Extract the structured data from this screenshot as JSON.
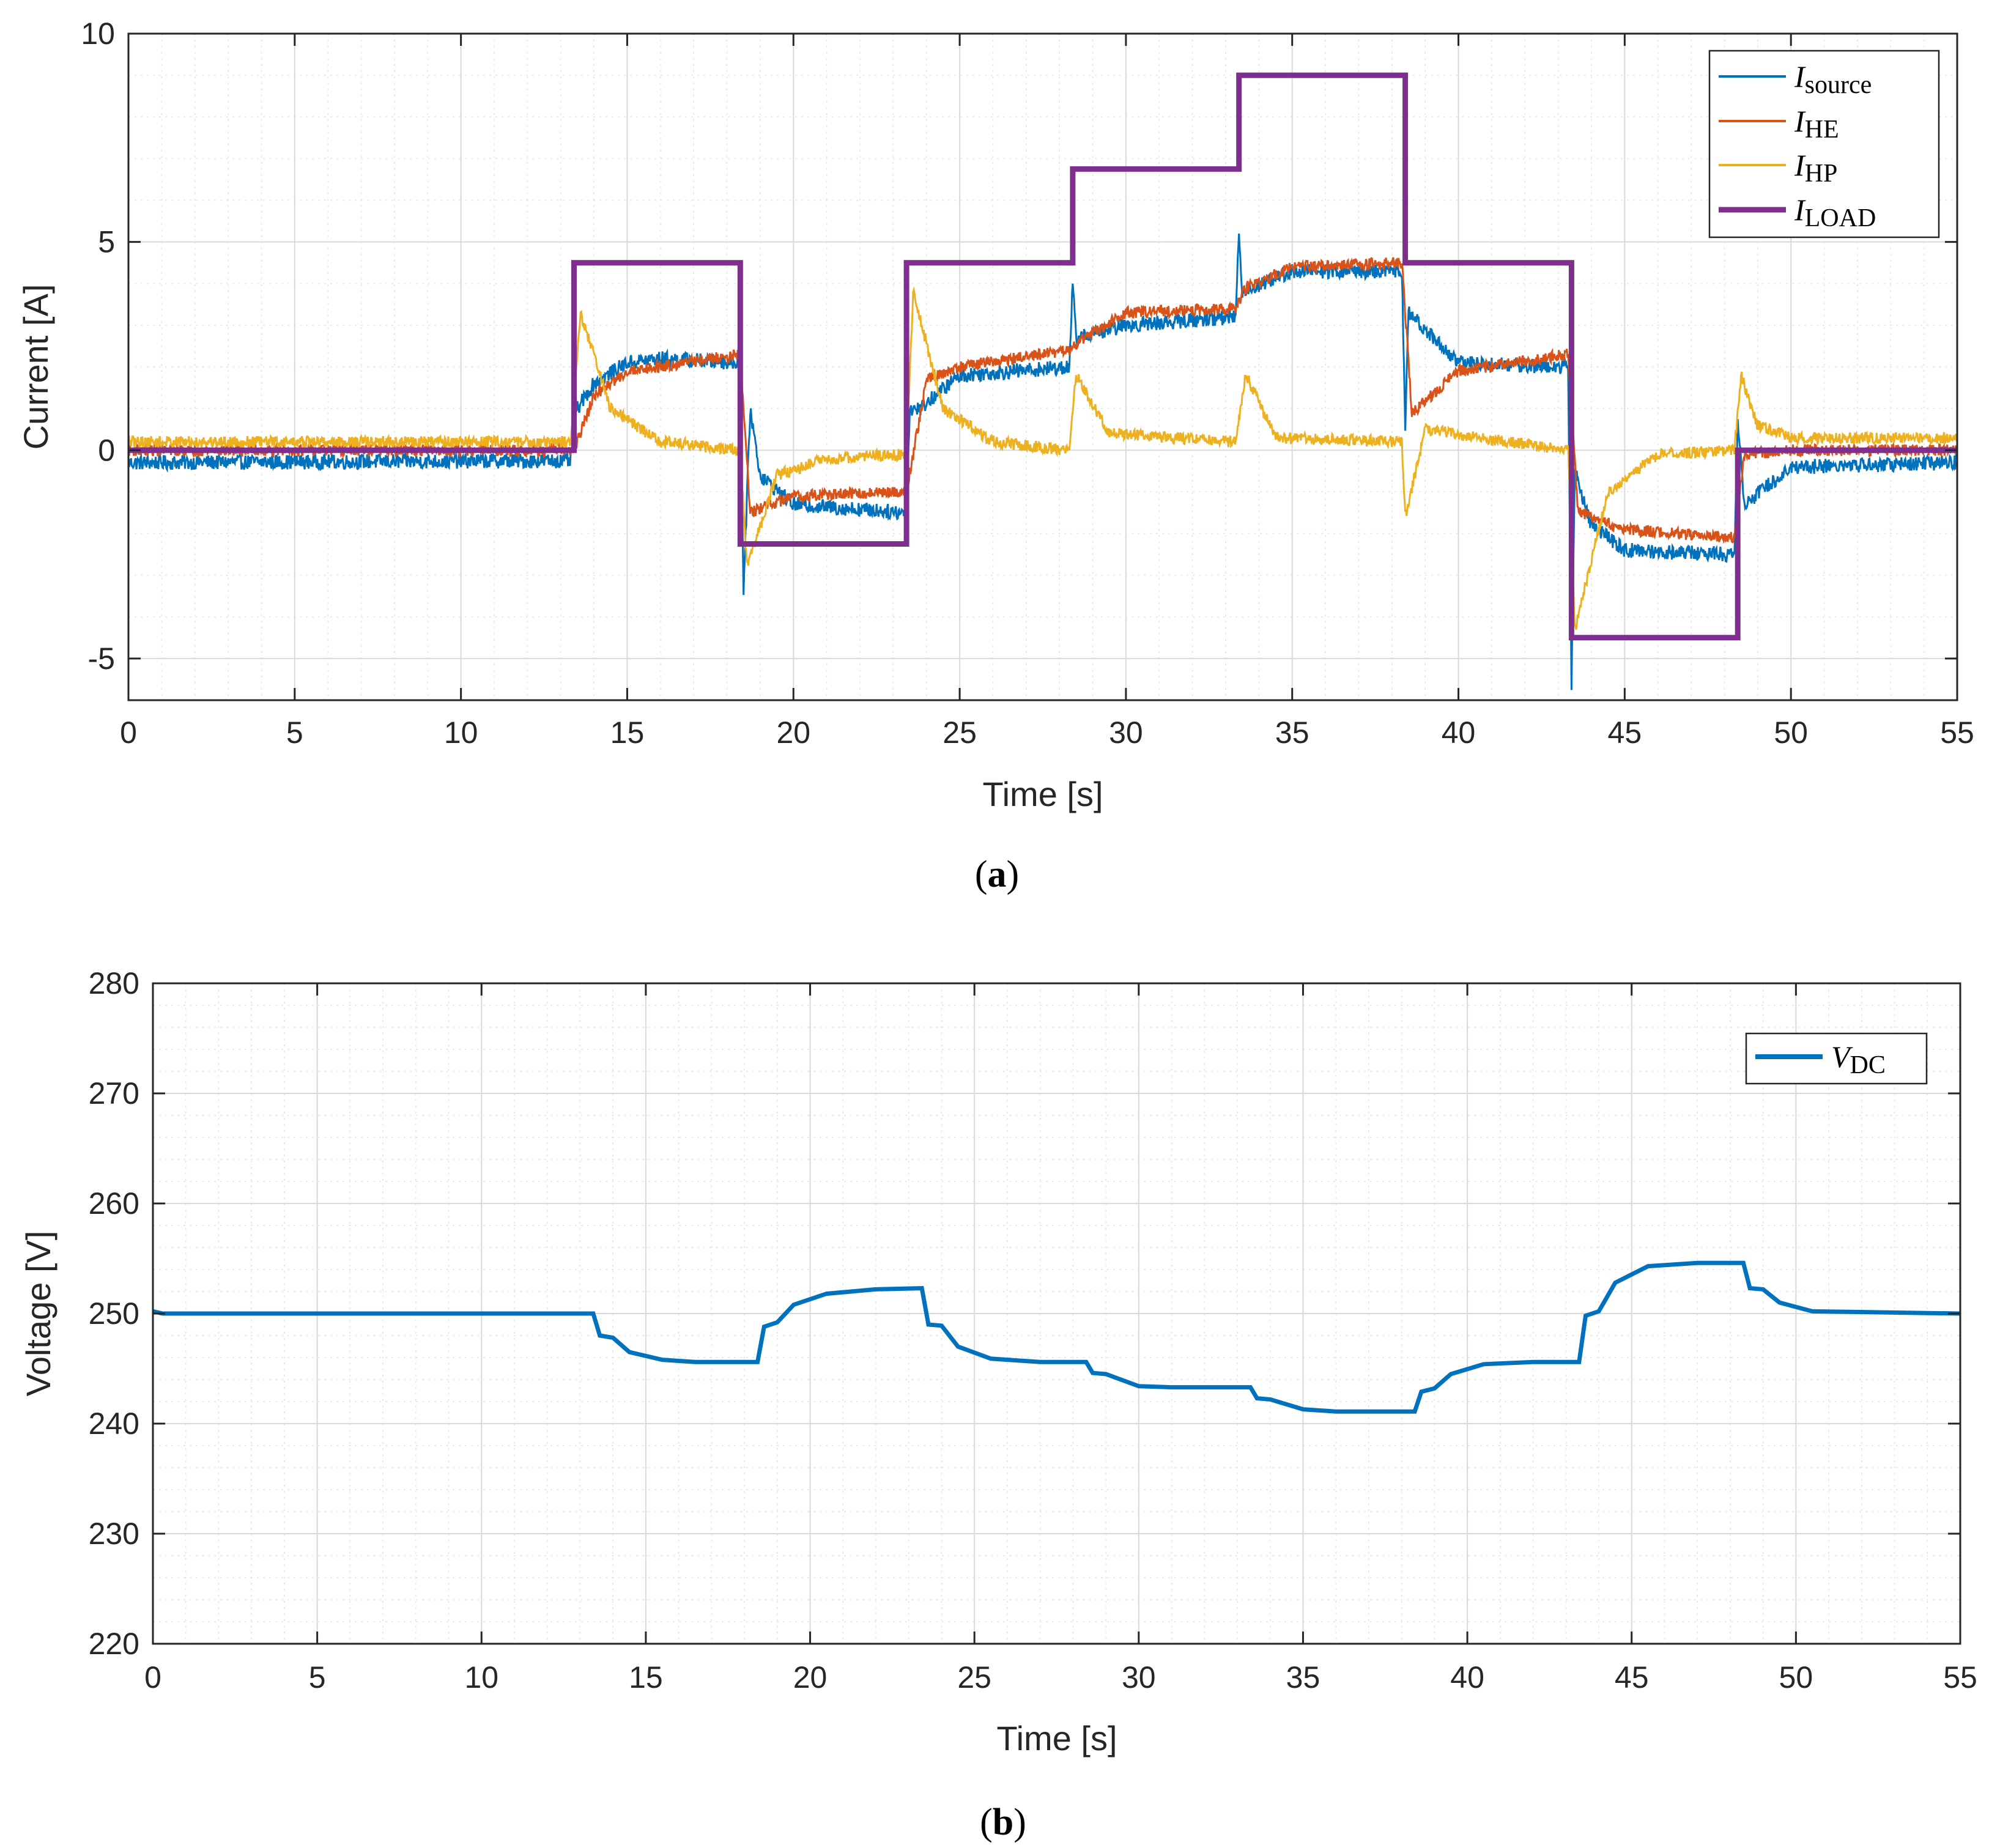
{
  "chart_data": [
    {
      "id": "a",
      "type": "line",
      "panel_label": "a",
      "xlabel": "Time [s]",
      "ylabel": "Current [A]",
      "xlim": [
        0,
        55
      ],
      "ylim": [
        -6,
        10
      ],
      "xticks": [
        0,
        5,
        10,
        15,
        20,
        25,
        30,
        35,
        40,
        45,
        50,
        55
      ],
      "yticks": [
        -5,
        0,
        5,
        10
      ],
      "ytick_labels": [
        "-5",
        "0",
        "5",
        "10"
      ],
      "grid": true,
      "legend_position": "top-right",
      "series": [
        {
          "name": "I_source",
          "label_main": "I",
          "label_sub": "source",
          "color": "#0072BD",
          "noise": 0.18,
          "width": 3,
          "points": [
            [
              0,
              -0.3
            ],
            [
              13.3,
              -0.25
            ],
            [
              13.5,
              1.0
            ],
            [
              14,
              1.6
            ],
            [
              15,
              2.1
            ],
            [
              16,
              2.2
            ],
            [
              18.4,
              2.1
            ],
            [
              18.5,
              -3.4
            ],
            [
              18.7,
              1.0
            ],
            [
              19,
              -0.6
            ],
            [
              20,
              -1.3
            ],
            [
              23.4,
              -1.5
            ],
            [
              23.5,
              1.0
            ],
            [
              23.8,
              1.0
            ],
            [
              25,
              1.8
            ],
            [
              28.3,
              2.0
            ],
            [
              28.4,
              4.0
            ],
            [
              28.5,
              2.7
            ],
            [
              30,
              3.0
            ],
            [
              33.3,
              3.2
            ],
            [
              33.4,
              5.3
            ],
            [
              33.5,
              3.8
            ],
            [
              35,
              4.3
            ],
            [
              38.3,
              4.3
            ],
            [
              38.4,
              0.6
            ],
            [
              38.5,
              3.3
            ],
            [
              40,
              2.1
            ],
            [
              43.3,
              2.0
            ],
            [
              43.4,
              -5.6
            ],
            [
              43.5,
              -0.5
            ],
            [
              44,
              -1.8
            ],
            [
              45,
              -2.4
            ],
            [
              48.3,
              -2.5
            ],
            [
              48.4,
              0.8
            ],
            [
              48.6,
              -1.3
            ],
            [
              50,
              -0.4
            ],
            [
              55,
              -0.3
            ]
          ]
        },
        {
          "name": "I_HE",
          "label_main": "I",
          "label_sub": "HE",
          "color": "#D95319",
          "noise": 0.14,
          "width": 3,
          "points": [
            [
              0,
              0.0
            ],
            [
              13.4,
              0.0
            ],
            [
              14,
              1.3
            ],
            [
              15,
              1.9
            ],
            [
              18.4,
              2.3
            ],
            [
              18.7,
              -1.5
            ],
            [
              20,
              -1.1
            ],
            [
              23.4,
              -1.0
            ],
            [
              24,
              1.7
            ],
            [
              25,
              2.0
            ],
            [
              28.3,
              2.4
            ],
            [
              28.6,
              2.6
            ],
            [
              30,
              3.3
            ],
            [
              33.3,
              3.4
            ],
            [
              33.6,
              3.9
            ],
            [
              35,
              4.4
            ],
            [
              38.3,
              4.5
            ],
            [
              38.6,
              0.9
            ],
            [
              40,
              1.9
            ],
            [
              43.3,
              2.3
            ],
            [
              43.6,
              -1.5
            ],
            [
              45,
              -1.9
            ],
            [
              48.3,
              -2.1
            ],
            [
              48.6,
              -0.1
            ],
            [
              50,
              0.0
            ],
            [
              55,
              0.0
            ]
          ]
        },
        {
          "name": "I_HP",
          "label_main": "I",
          "label_sub": "HP",
          "color": "#EDB120",
          "noise": 0.14,
          "width": 3,
          "points": [
            [
              0,
              0.2
            ],
            [
              13.3,
              0.2
            ],
            [
              13.6,
              3.3
            ],
            [
              14.5,
              1.0
            ],
            [
              16,
              0.2
            ],
            [
              18.4,
              0.0
            ],
            [
              18.6,
              -2.8
            ],
            [
              19.5,
              -0.6
            ],
            [
              21,
              -0.2
            ],
            [
              23.4,
              -0.1
            ],
            [
              23.6,
              3.8
            ],
            [
              24.5,
              1.0
            ],
            [
              26,
              0.2
            ],
            [
              28.3,
              0.0
            ],
            [
              28.5,
              1.8
            ],
            [
              29.5,
              0.4
            ],
            [
              33.3,
              0.2
            ],
            [
              33.6,
              1.8
            ],
            [
              34.5,
              0.3
            ],
            [
              38.3,
              0.2
            ],
            [
              38.4,
              -1.6
            ],
            [
              39,
              0.5
            ],
            [
              43.3,
              0.0
            ],
            [
              43.5,
              -4.3
            ],
            [
              44.5,
              -1.0
            ],
            [
              46,
              -0.1
            ],
            [
              48.3,
              0.0
            ],
            [
              48.5,
              1.8
            ],
            [
              49,
              0.6
            ],
            [
              50,
              0.3
            ],
            [
              55,
              0.3
            ]
          ]
        },
        {
          "name": "I_LOAD",
          "label_main": "I",
          "label_sub": "LOAD",
          "color": "#7E2F8E",
          "noise": 0,
          "width": 9,
          "points": [
            [
              0,
              0
            ],
            [
              13.4,
              0
            ],
            [
              13.4,
              4.5
            ],
            [
              18.4,
              4.5
            ],
            [
              18.4,
              -2.25
            ],
            [
              23.4,
              -2.25
            ],
            [
              23.4,
              4.5
            ],
            [
              28.4,
              4.5
            ],
            [
              28.4,
              6.75
            ],
            [
              33.4,
              6.75
            ],
            [
              33.4,
              9.0
            ],
            [
              38.4,
              9.0
            ],
            [
              38.4,
              4.5
            ],
            [
              43.4,
              4.5
            ],
            [
              43.4,
              -4.5
            ],
            [
              48.4,
              -4.5
            ],
            [
              48.4,
              0
            ],
            [
              55,
              0
            ]
          ]
        }
      ]
    },
    {
      "id": "b",
      "type": "line",
      "panel_label": "b",
      "xlabel": "Time [s]",
      "ylabel": "Voltage [V]",
      "xlim": [
        0,
        55
      ],
      "ylim": [
        220,
        280
      ],
      "xticks": [
        0,
        5,
        10,
        15,
        20,
        25,
        30,
        35,
        40,
        45,
        50,
        55
      ],
      "yticks": [
        220,
        230,
        240,
        250,
        260,
        270,
        280
      ],
      "ytick_labels": [
        "220",
        "230",
        "240",
        "250",
        "260",
        "270",
        "280"
      ],
      "grid": true,
      "legend_position": "top-right",
      "series": [
        {
          "name": "V_DC",
          "label_main": "V",
          "label_sub": "DC",
          "color": "#0072BD",
          "noise": 0,
          "width": 7,
          "points": [
            [
              0,
              250.2
            ],
            [
              0.3,
              250.0
            ],
            [
              13.4,
              250.0
            ],
            [
              13.6,
              248.0
            ],
            [
              14,
              247.8
            ],
            [
              14.5,
              246.5
            ],
            [
              15.5,
              245.8
            ],
            [
              16.5,
              245.6
            ],
            [
              18.4,
              245.6
            ],
            [
              18.6,
              248.8
            ],
            [
              19,
              249.2
            ],
            [
              19.5,
              250.8
            ],
            [
              20.5,
              251.8
            ],
            [
              22,
              252.2
            ],
            [
              23.4,
              252.3
            ],
            [
              23.6,
              249.0
            ],
            [
              24,
              248.9
            ],
            [
              24.5,
              247.0
            ],
            [
              25.5,
              245.9
            ],
            [
              27,
              245.6
            ],
            [
              28.4,
              245.6
            ],
            [
              28.6,
              244.6
            ],
            [
              29,
              244.5
            ],
            [
              30,
              243.4
            ],
            [
              31,
              243.3
            ],
            [
              33.4,
              243.3
            ],
            [
              33.6,
              242.3
            ],
            [
              34,
              242.2
            ],
            [
              35,
              241.3
            ],
            [
              36,
              241.1
            ],
            [
              38.4,
              241.1
            ],
            [
              38.6,
              242.9
            ],
            [
              39,
              243.2
            ],
            [
              39.5,
              244.5
            ],
            [
              40.5,
              245.4
            ],
            [
              42,
              245.6
            ],
            [
              43.4,
              245.6
            ],
            [
              43.6,
              249.8
            ],
            [
              44,
              250.2
            ],
            [
              44.5,
              252.8
            ],
            [
              45.5,
              254.3
            ],
            [
              47,
              254.6
            ],
            [
              48.4,
              254.6
            ],
            [
              48.6,
              252.3
            ],
            [
              49,
              252.2
            ],
            [
              49.5,
              251.0
            ],
            [
              50.5,
              250.2
            ],
            [
              55,
              250.0
            ]
          ]
        }
      ]
    }
  ]
}
